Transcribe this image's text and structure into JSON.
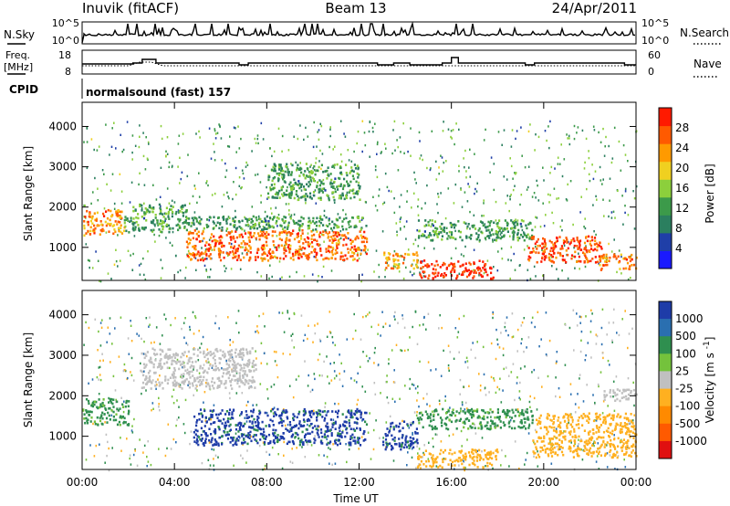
{
  "header": {
    "station": "Inuvik (fitACF)",
    "beam": "Beam 13",
    "date": "24/Apr/2011"
  },
  "strips": {
    "nsky": {
      "left_label": "N.Sky",
      "right_label": "N.Search",
      "left_ticks": [
        "10^5",
        "10^0"
      ],
      "right_ticks": [
        "10^5",
        "10^0"
      ]
    },
    "freq": {
      "left_label_1": "Freq.",
      "left_label_2": "[MHz]",
      "right_label": "Nave",
      "left_ticks": [
        "18",
        "8"
      ],
      "right_ticks": [
        "60",
        "0"
      ]
    },
    "cpid": {
      "label": "CPID",
      "value": "normalsound (fast) 157"
    }
  },
  "colors": {
    "power_scale": [
      "#1a1aff",
      "#1f3fa8",
      "#2b7f5f",
      "#3c9a4a",
      "#8ccf3c",
      "#f0d020",
      "#ff9a00",
      "#ff5a00",
      "#ff1a00"
    ],
    "velocity_scale": [
      "#1e3ca8",
      "#2a6fb0",
      "#2f8f4f",
      "#74c23c",
      "#c0c0c0",
      "#ffb020",
      "#ff8a00",
      "#ff5a00",
      "#e01010"
    ]
  },
  "chart_data": [
    {
      "type": "heatmap",
      "title": "",
      "xlabel": "",
      "ylabel": "Slant Range [km]",
      "x_ticks": [
        "00:00",
        "04:00",
        "08:00",
        "12:00",
        "16:00",
        "20:00",
        "00:00"
      ],
      "y_ticks": [
        1000,
        2000,
        3000,
        4000
      ],
      "ylim": [
        180,
        4600
      ],
      "colorbar": {
        "label": "Power [dB]",
        "ticks": [
          4,
          8,
          12,
          16,
          20,
          24,
          28
        ],
        "range": [
          0,
          32
        ]
      },
      "bands": [
        {
          "t0": 0.0,
          "t1": 1.8,
          "r0": 1300,
          "r1": 1950,
          "value": 24
        },
        {
          "t0": 1.8,
          "t1": 4.5,
          "r0": 1400,
          "r1": 2100,
          "value": 12
        },
        {
          "t0": 4.5,
          "t1": 12.3,
          "r0": 700,
          "r1": 1450,
          "value": 26
        },
        {
          "t0": 4.5,
          "t1": 12.3,
          "r0": 1450,
          "r1": 1800,
          "value": 12
        },
        {
          "t0": 8.0,
          "t1": 12.0,
          "r0": 2200,
          "r1": 3100,
          "value": 12
        },
        {
          "t0": 13.0,
          "t1": 14.5,
          "r0": 500,
          "r1": 900,
          "value": 22
        },
        {
          "t0": 14.6,
          "t1": 17.8,
          "r0": 250,
          "r1": 700,
          "value": 30
        },
        {
          "t0": 14.5,
          "t1": 19.5,
          "r0": 1200,
          "r1": 1700,
          "value": 12
        },
        {
          "t0": 19.3,
          "t1": 22.5,
          "r0": 650,
          "r1": 1300,
          "value": 28
        },
        {
          "t0": 22.3,
          "t1": 24.0,
          "r0": 450,
          "r1": 850,
          "value": 24
        }
      ]
    },
    {
      "type": "heatmap",
      "title": "",
      "xlabel": "Time UT",
      "ylabel": "Slant Range [km]",
      "x_ticks": [
        "00:00",
        "04:00",
        "08:00",
        "12:00",
        "16:00",
        "20:00",
        "00:00"
      ],
      "y_ticks": [
        1000,
        2000,
        3000,
        4000
      ],
      "ylim": [
        180,
        4600
      ],
      "colorbar": {
        "label": "Velocity [m s^-1]",
        "ticks": [
          1000,
          500,
          100,
          25,
          -25,
          -100,
          -500,
          -1000
        ]
      },
      "bands": [
        {
          "t0": 0.0,
          "t1": 2.0,
          "r0": 1300,
          "r1": 1950,
          "value": 100
        },
        {
          "t0": 4.8,
          "t1": 12.3,
          "r0": 800,
          "r1": 1700,
          "value": 1000
        },
        {
          "t0": 2.5,
          "t1": 7.5,
          "r0": 2200,
          "r1": 3200,
          "value": 0
        },
        {
          "t0": 13.0,
          "t1": 14.5,
          "r0": 700,
          "r1": 1400,
          "value": 1000
        },
        {
          "t0": 14.5,
          "t1": 18.0,
          "r0": 250,
          "r1": 700,
          "value": -100
        },
        {
          "t0": 14.5,
          "t1": 19.5,
          "r0": 1200,
          "r1": 1700,
          "value": 100
        },
        {
          "t0": 19.5,
          "t1": 24.0,
          "r0": 500,
          "r1": 1600,
          "value": -100
        },
        {
          "t0": 22.5,
          "t1": 24.0,
          "r0": 1900,
          "r1": 2200,
          "value": 0
        }
      ]
    }
  ]
}
